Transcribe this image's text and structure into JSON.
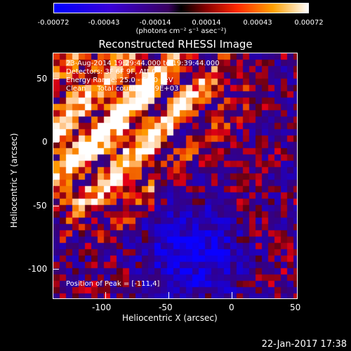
{
  "colorbar": {
    "ticks": [
      "-0.00072",
      "-0.00043",
      "-0.00014",
      "0.00014",
      "0.00043",
      "0.00072"
    ],
    "units": "(photons cm⁻² s⁻¹ asec⁻²)"
  },
  "title": "Reconstructed RHESSI Image",
  "info": {
    "time": "23-Aug-2014 19:29:44.000 to 19:39:44.000",
    "detectors": "Detectors: 3F 6F 9F, Att 0",
    "energy": "Energy Range: 25.0 - 50.0 keV",
    "clean": "Clean     Total counts: 9.69E+03"
  },
  "peak": "Position of Peak = [-111,4]",
  "axes": {
    "xlabel": "Heliocentric X (arcsec)",
    "ylabel": "Heliocentric Y (arcsec)",
    "xticks": [
      "-100",
      "-50",
      "0",
      "50"
    ],
    "yticks": [
      "50",
      "0",
      "-50",
      "-100"
    ]
  },
  "timestamp": "22-Jan-2017 17:38"
}
